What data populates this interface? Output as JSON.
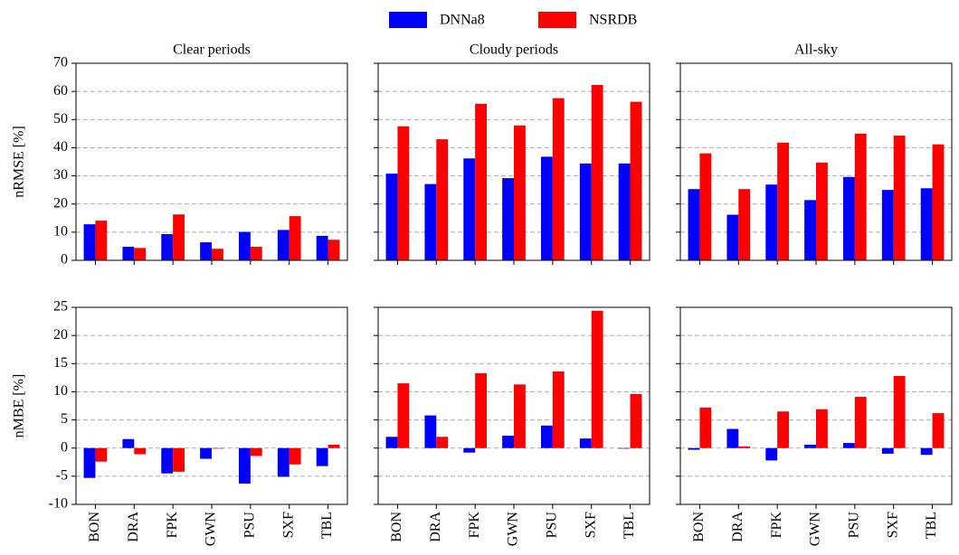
{
  "chart_data": {
    "type": "bar",
    "legend": "upper center",
    "grid": true,
    "categories": [
      "BON",
      "DRA",
      "FPK",
      "GWN",
      "PSU",
      "SXF",
      "TBL"
    ],
    "series": [
      {
        "name": "DNNa8",
        "color": "#0000ff"
      },
      {
        "name": "NSRDB",
        "color": "#ff0000"
      }
    ],
    "columns": [
      "Clear periods",
      "Cloudy periods",
      "All-sky"
    ],
    "rows": [
      {
        "ylabel": "nRMSE [%]",
        "ylim": [
          0,
          70
        ],
        "yticks": [
          0,
          10,
          20,
          30,
          40,
          50,
          60,
          70
        ],
        "values": [
          [
            [
              12.8,
              4.8,
              9.3,
              6.4,
              10.1,
              10.8,
              8.7
            ],
            [
              14.1,
              4.4,
              16.3,
              4.1,
              4.8,
              15.7,
              7.3
            ]
          ],
          [
            [
              30.8,
              27.1,
              36.2,
              29.2,
              36.8,
              34.4,
              34.4
            ],
            [
              47.6,
              43.0,
              55.6,
              47.9,
              57.6,
              62.3,
              56.3
            ]
          ],
          [
            [
              25.3,
              16.2,
              26.9,
              21.4,
              29.6,
              25.0,
              25.6
            ],
            [
              38.0,
              25.3,
              41.8,
              34.7,
              45.0,
              44.3,
              41.2
            ]
          ]
        ]
      },
      {
        "ylabel": "nMBE [%]",
        "ylim": [
          -10,
          25
        ],
        "yticks": [
          -10,
          -5,
          0,
          5,
          10,
          15,
          20,
          25
        ],
        "values": [
          [
            [
              -5.3,
              1.6,
              -4.5,
              -1.9,
              -6.3,
              -5.1,
              -3.2
            ],
            [
              -2.4,
              -1.1,
              -4.2,
              -0.1,
              -1.4,
              -2.9,
              0.6
            ]
          ],
          [
            [
              2.0,
              5.8,
              -0.8,
              2.2,
              4.0,
              1.7,
              -0.1
            ],
            [
              11.5,
              2.0,
              13.3,
              11.3,
              13.6,
              24.4,
              9.6
            ]
          ],
          [
            [
              -0.3,
              3.4,
              -2.2,
              0.6,
              0.9,
              -1.0,
              -1.2
            ],
            [
              7.2,
              0.3,
              6.5,
              6.9,
              9.1,
              12.8,
              6.2
            ]
          ]
        ]
      }
    ]
  }
}
